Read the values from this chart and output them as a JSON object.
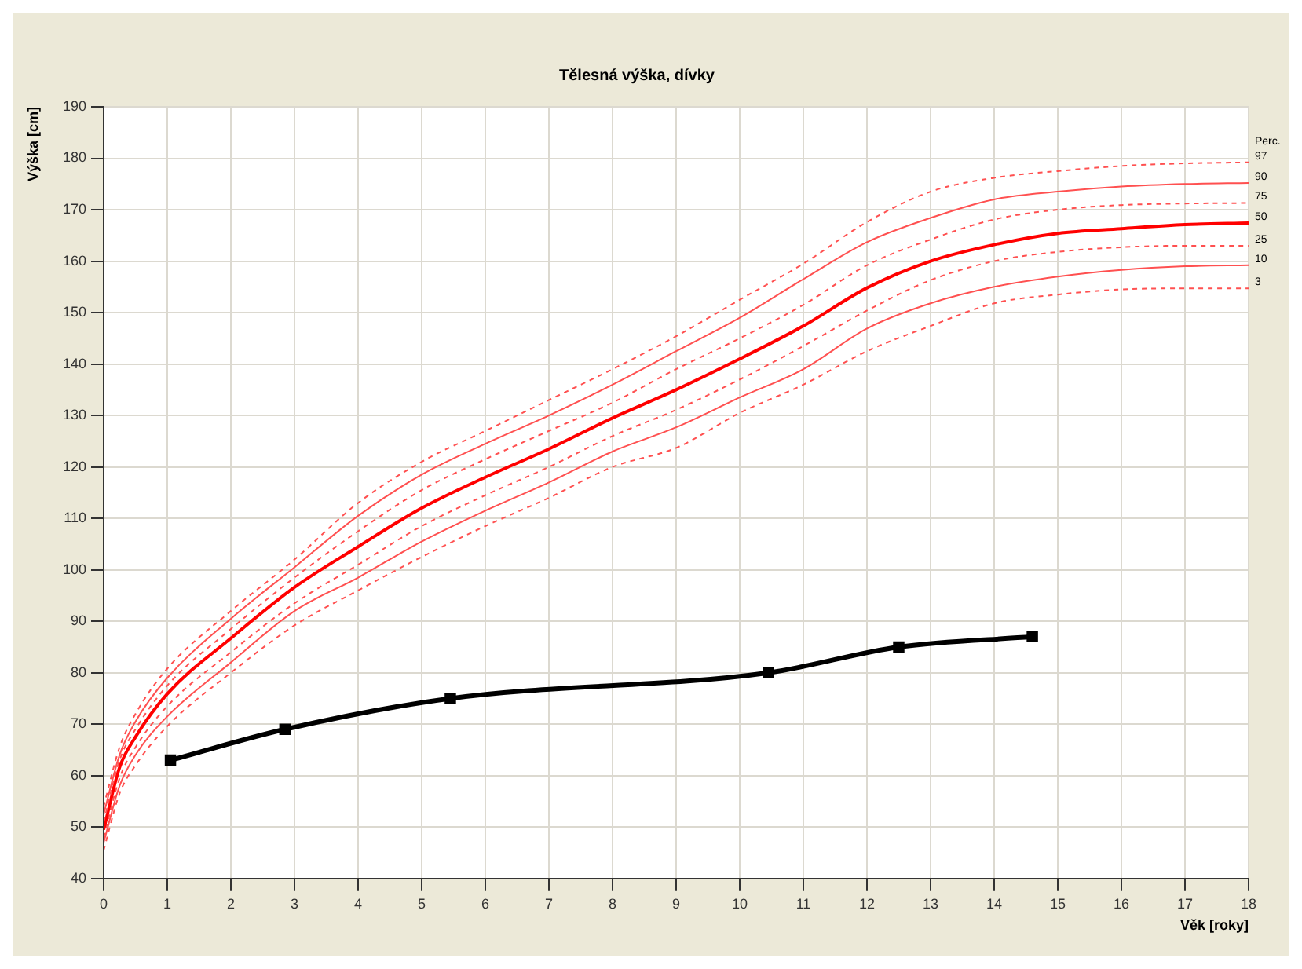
{
  "chart_data": {
    "type": "line",
    "title": "Tělesná výška, dívky",
    "xlabel": "Věk [roky]",
    "ylabel": "Výška [cm]",
    "legend_title": "Perc.",
    "legend": false,
    "grid": true,
    "xlim": [
      0,
      18
    ],
    "xticks": [
      0,
      1,
      2,
      3,
      4,
      5,
      6,
      7,
      8,
      9,
      10,
      11,
      12,
      13,
      14,
      15,
      16,
      17,
      18
    ],
    "ylim": [
      40,
      190
    ],
    "yticks": [
      40,
      50,
      60,
      70,
      80,
      90,
      100,
      110,
      120,
      130,
      140,
      150,
      160,
      170,
      180,
      190
    ],
    "x": [
      0,
      0.25,
      0.5,
      1,
      2,
      3,
      4,
      5,
      6,
      7,
      8,
      9,
      10,
      11,
      12,
      13,
      14,
      15,
      16,
      17,
      18
    ],
    "series": [
      {
        "name": "97",
        "color": "#ff5050",
        "line_style": "dashed",
        "marker": "none",
        "values": [
          54,
          65.5,
          72,
          80.8,
          92,
          102,
          113,
          121,
          127,
          133,
          139,
          145.4,
          152.5,
          159.5,
          167.6,
          173.5,
          176.2,
          177.5,
          178.5,
          179,
          179.2
        ]
      },
      {
        "name": "90",
        "color": "#ff5050",
        "line_style": "solid",
        "marker": "none",
        "values": [
          52.5,
          64,
          70.5,
          79,
          90.5,
          100.5,
          110.5,
          118.5,
          124.5,
          130,
          136,
          142.5,
          149,
          156.5,
          163.7,
          168.4,
          172,
          173.5,
          174.5,
          175,
          175.2
        ]
      },
      {
        "name": "75",
        "color": "#ff5050",
        "line_style": "dashed",
        "marker": "none",
        "values": [
          51,
          63,
          69,
          77.5,
          88.5,
          98.5,
          107.5,
          115.5,
          121.5,
          127,
          132.5,
          139,
          145,
          151.5,
          159.2,
          164.2,
          168.1,
          170,
          170.9,
          171.2,
          171.3
        ]
      },
      {
        "name": "50",
        "color": "#ff0000",
        "line_style": "solid",
        "marker": "none",
        "values": [
          49.5,
          61.6,
          67.5,
          75.9,
          86.7,
          96.6,
          104.5,
          112,
          118,
          123.5,
          129.5,
          135,
          141,
          147.4,
          154.8,
          160,
          163.2,
          165.4,
          166.3,
          167.1,
          167.4
        ]
      },
      {
        "name": "25",
        "color": "#ff5050",
        "line_style": "dashed",
        "marker": "none",
        "values": [
          48,
          59.5,
          65.5,
          73.5,
          84,
          93.5,
          101,
          108.5,
          114.5,
          120,
          126,
          131.1,
          137,
          143.5,
          150.4,
          156.3,
          160,
          161.8,
          162.7,
          163,
          163
        ]
      },
      {
        "name": "10",
        "color": "#ff5050",
        "line_style": "solid",
        "marker": "none",
        "values": [
          47,
          58,
          64,
          71.5,
          82,
          92,
          98.5,
          105.5,
          111.5,
          117,
          123,
          127.7,
          133.5,
          139,
          146.9,
          151.8,
          155,
          157,
          158.3,
          159,
          159.2
        ]
      },
      {
        "name": "3",
        "color": "#ff5050",
        "line_style": "dashed",
        "marker": "none",
        "values": [
          45.5,
          56.5,
          62,
          69.6,
          80,
          89.2,
          96,
          102.5,
          108.5,
          114,
          120,
          123.7,
          130.5,
          136,
          142.5,
          147.4,
          151.8,
          153.5,
          154.5,
          154.7,
          154.7
        ]
      },
      {
        "color": "#000000",
        "line_style": "solid",
        "marker": "square",
        "x": [
          1.05,
          2.85,
          5.45,
          10.45,
          12.5,
          14.6
        ],
        "values": [
          63,
          69,
          75,
          80,
          85,
          87
        ]
      }
    ]
  }
}
